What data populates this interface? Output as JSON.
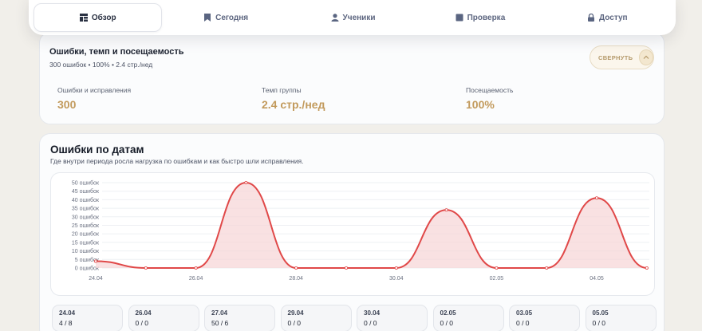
{
  "nav": {
    "tabs": [
      {
        "label": "Обзор",
        "icon": "dashboard-icon",
        "active": true
      },
      {
        "label": "Сегодня",
        "icon": "bookmark-icon",
        "active": false
      },
      {
        "label": "Ученики",
        "icon": "user-icon",
        "active": false
      },
      {
        "label": "Проверка",
        "icon": "square-icon",
        "active": false
      },
      {
        "label": "Доступ",
        "icon": "lock-icon",
        "active": false
      }
    ]
  },
  "summary": {
    "title": "Ошибки, темп и посещаемость",
    "subtitle": "300 ошибок • 100% • 2.4 стр./нед",
    "collapse_label": "СВЕРНУТЬ",
    "stats": [
      {
        "label": "Ошибки и исправления",
        "value": "300"
      },
      {
        "label": "Темп группы",
        "value": "2.4 стр./нед"
      },
      {
        "label": "Посещаемость",
        "value": "100%"
      }
    ]
  },
  "errors_section": {
    "title": "Ошибки по датам",
    "subtitle": "Где внутри периода росла нагрузка по ошибкам и как быстро шли исправления."
  },
  "chart_data": {
    "type": "area",
    "y_tick_labels": [
      "0 ошибок",
      "5 ошибок",
      "10 ошибок",
      "15 ошибок",
      "20 ошибок",
      "25 ошибок",
      "30 ошибок",
      "35 ошибок",
      "40 ошибок",
      "45 ошибок",
      "50 ошибок"
    ],
    "ylim": [
      0,
      50
    ],
    "x_tick_labels": [
      "24.04",
      "26.04",
      "28.04",
      "30.04",
      "02.05",
      "04.05"
    ],
    "x": [
      "24.04",
      "25.04",
      "26.04",
      "27.04",
      "28.04",
      "29.04",
      "30.04",
      "01.05",
      "02.05",
      "03.05",
      "04.05",
      "05.05"
    ],
    "values": [
      4,
      0,
      0,
      50,
      0,
      0,
      0,
      34,
      0,
      0,
      41,
      0
    ],
    "grid": true,
    "line_color": "#e04848",
    "fill_color": "#f7d4d6"
  },
  "day_cards": [
    {
      "date": "24.04",
      "value": "4 / 8"
    },
    {
      "date": "26.04",
      "value": "0 / 0"
    },
    {
      "date": "27.04",
      "value": "50 / 6"
    },
    {
      "date": "29.04",
      "value": "0 / 0"
    },
    {
      "date": "30.04",
      "value": "0 / 0"
    },
    {
      "date": "02.05",
      "value": "0 / 0"
    },
    {
      "date": "03.05",
      "value": "0 / 0"
    },
    {
      "date": "05.05",
      "value": "0 / 0"
    }
  ]
}
